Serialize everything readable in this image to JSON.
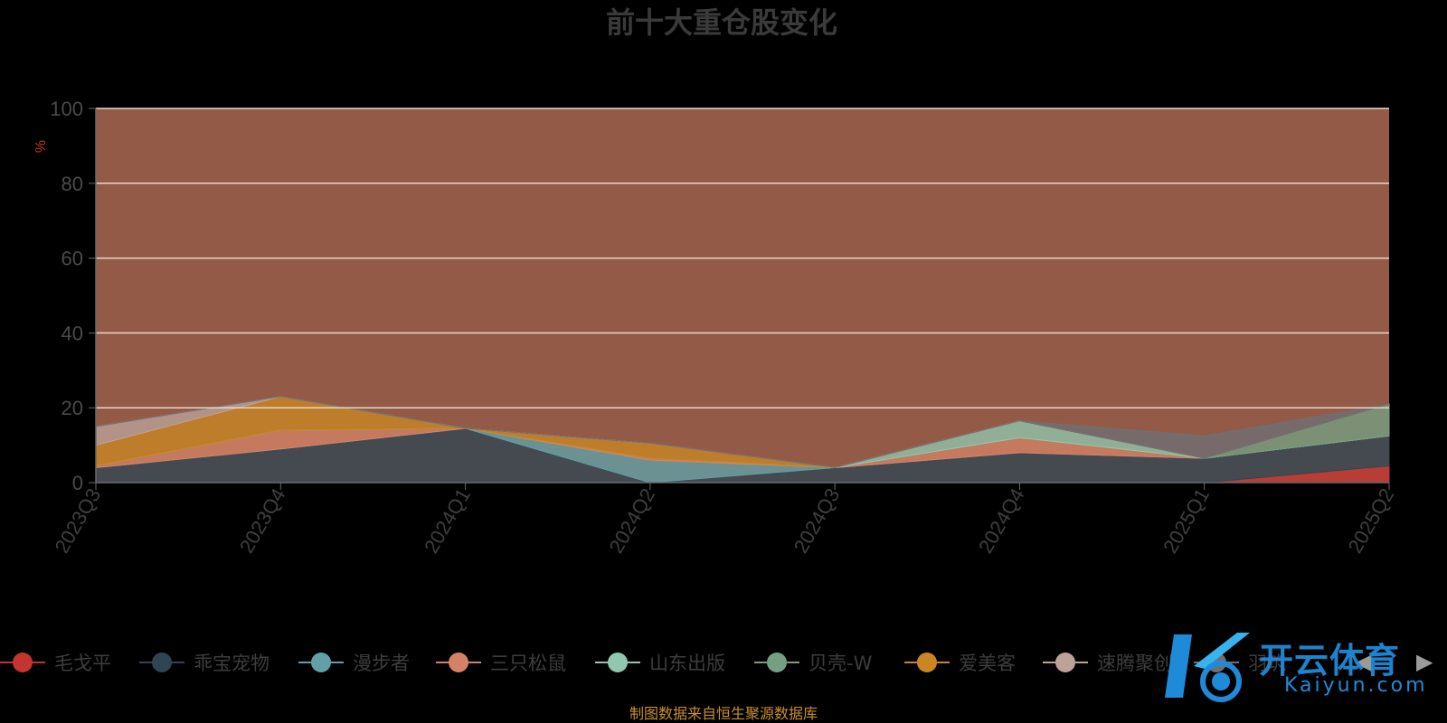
{
  "chart_data": {
    "type": "area",
    "title": "前十大重仓股变化",
    "ylabel": "%",
    "ylim": [
      0,
      100
    ],
    "y_ticks": [
      "0",
      "20",
      "40",
      "60",
      "80",
      "100"
    ],
    "categories": [
      "2023Q3",
      "2023Q4",
      "2024Q1",
      "2024Q2",
      "2024Q3",
      "2024Q4",
      "2025Q1",
      "2025Q2"
    ],
    "stacked": true,
    "grid": true,
    "legend_position": "bottom",
    "series": [
      {
        "name": "毛戈平",
        "color": "#c23531",
        "values": [
          0,
          0,
          0,
          0,
          0,
          0,
          0,
          4.5
        ]
      },
      {
        "name": "乖宝宠物",
        "color": "#2f4554",
        "values": [
          4,
          9,
          14.5,
          0,
          4,
          8,
          6.5,
          8
        ]
      },
      {
        "name": "漫步者",
        "color": "#61a0a8",
        "values": [
          0,
          0,
          0,
          6,
          0,
          0,
          0,
          0
        ]
      },
      {
        "name": "三只松鼠",
        "color": "#d48265",
        "values": [
          0.5,
          5,
          0,
          0.5,
          0,
          4,
          0,
          0
        ]
      },
      {
        "name": "山东出版",
        "color": "#91c7ae",
        "values": [
          0,
          0,
          0,
          0,
          0,
          4.5,
          0,
          0
        ]
      },
      {
        "name": "贝壳-W",
        "color": "#749f83",
        "values": [
          0,
          0,
          0,
          0,
          0,
          0,
          0,
          8.5
        ]
      },
      {
        "name": "爱美客",
        "color": "#ca8622",
        "values": [
          5.5,
          9,
          0,
          4,
          0,
          0,
          0,
          0
        ]
      },
      {
        "name": "速腾聚创",
        "color": "#bda29a",
        "values": [
          5,
          0,
          0,
          0,
          0,
          0,
          0,
          0
        ]
      },
      {
        "name": "羽筑",
        "color": "#6e7074",
        "values": [
          0,
          0,
          0,
          0,
          0,
          0,
          6,
          0
        ]
      }
    ],
    "source_note": "制图数据来自恒生聚源数据库"
  },
  "watermark": {
    "brand": "开云体育",
    "sub": "Kaiyun.com"
  },
  "legend_nav": {
    "prev": "◀",
    "next": "▶"
  }
}
